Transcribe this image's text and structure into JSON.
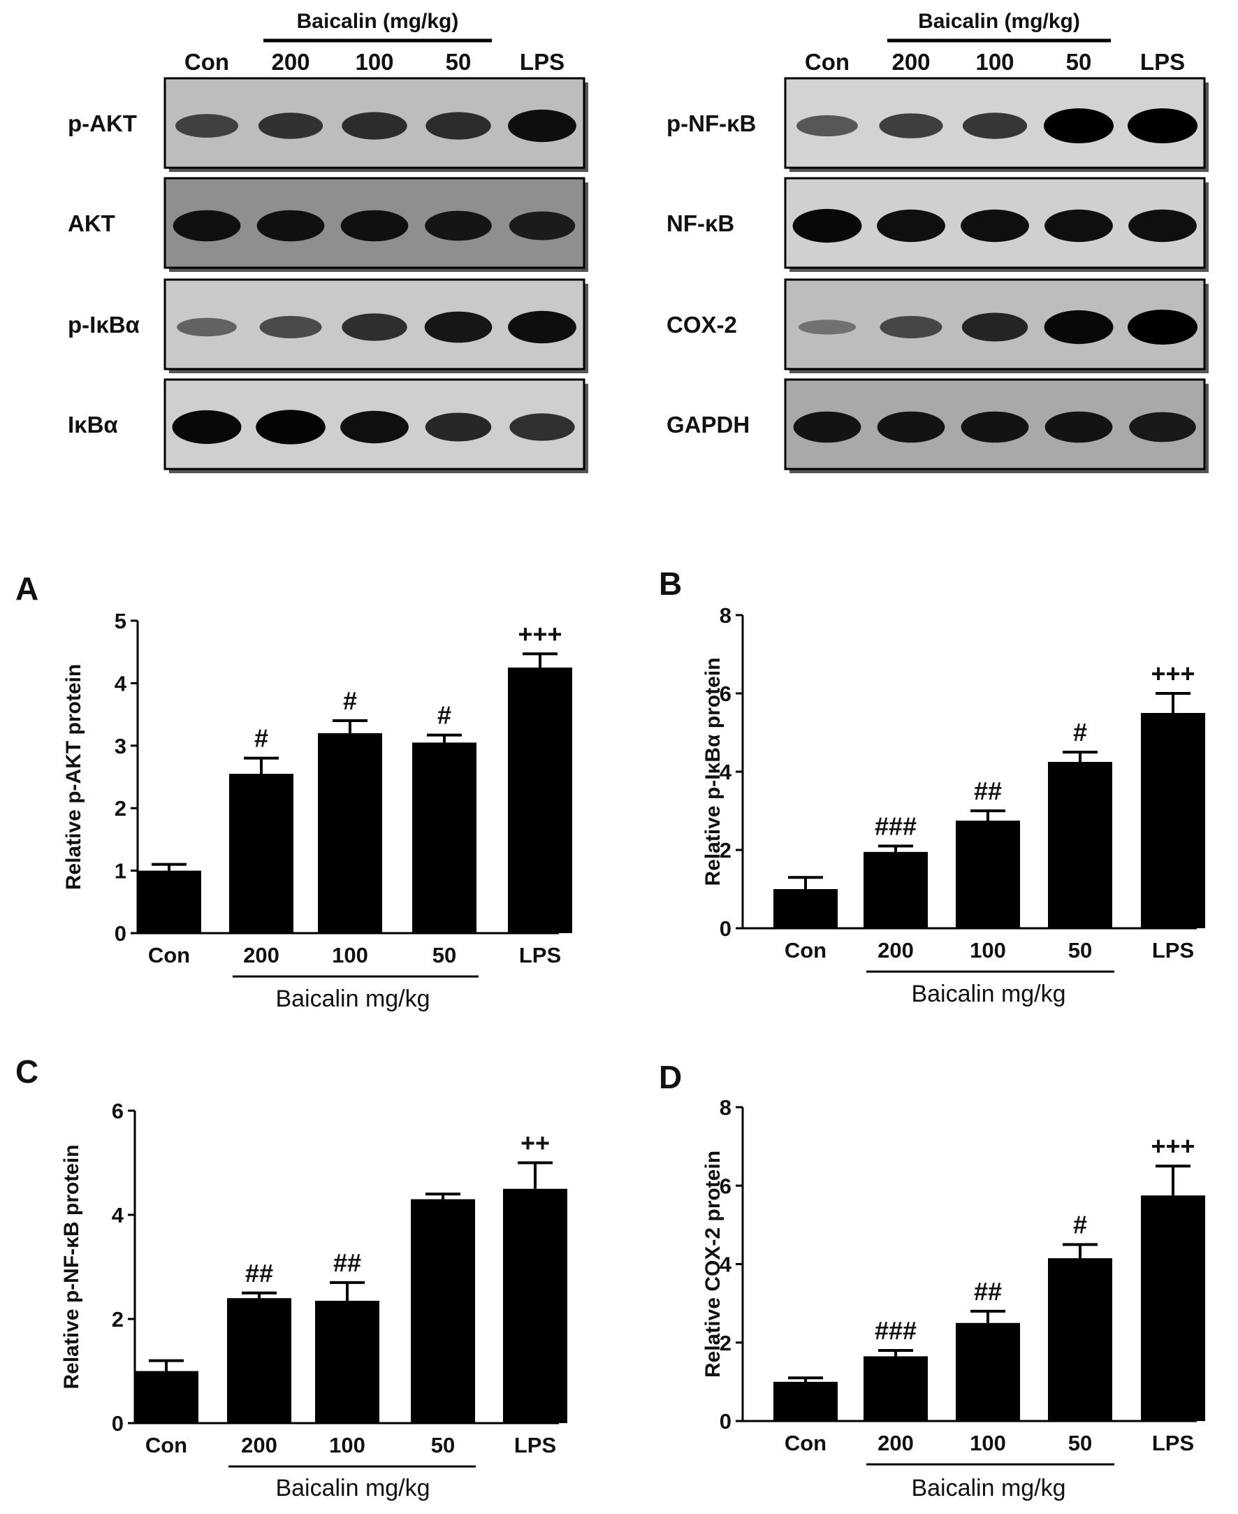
{
  "blots": [
    {
      "group_label": "Baicalin (mg/kg)",
      "lanes": [
        "Con",
        "200",
        "100",
        "50",
        "LPS"
      ],
      "rows": [
        {
          "label": "p-AKT",
          "bg": "#bdbdbd",
          "bands": [
            0.55,
            0.65,
            0.7,
            0.7,
            0.9
          ]
        },
        {
          "label": "AKT",
          "bg": "#8f8f8f",
          "bands": [
            0.85,
            0.85,
            0.85,
            0.8,
            0.75
          ]
        },
        {
          "label": "p-IκBα",
          "bg": "#c9c9c9",
          "bands": [
            0.35,
            0.5,
            0.7,
            0.85,
            0.9
          ]
        },
        {
          "label": "IκBα",
          "bg": "#cfcfcf",
          "bands": [
            0.95,
            0.98,
            0.9,
            0.75,
            0.7
          ]
        }
      ]
    },
    {
      "group_label": "Baicalin (mg/kg)",
      "lanes": [
        "Con",
        "200",
        "100",
        "50",
        "LPS"
      ],
      "rows": [
        {
          "label": "p-NF-κB",
          "bg": "#d3d3d3",
          "bands": [
            0.45,
            0.6,
            0.65,
            1.0,
            1.0
          ]
        },
        {
          "label": "NF-κB",
          "bg": "#d0d0d0",
          "bands": [
            0.95,
            0.9,
            0.9,
            0.9,
            0.9
          ]
        },
        {
          "label": "COX-2",
          "bg": "#bdbdbd",
          "bands": [
            0.2,
            0.5,
            0.75,
            0.95,
            1.0
          ]
        },
        {
          "label": "GAPDH",
          "bg": "#a9a9a9",
          "bands": [
            0.85,
            0.85,
            0.85,
            0.85,
            0.8
          ]
        }
      ]
    }
  ],
  "chart_data": [
    {
      "panel": "A",
      "type": "bar",
      "categories": [
        "Con",
        "200",
        "100",
        "50",
        "LPS"
      ],
      "values": [
        1.0,
        2.55,
        3.2,
        3.05,
        4.25
      ],
      "errors": [
        0.1,
        0.25,
        0.2,
        0.12,
        0.22
      ],
      "annotations": [
        "",
        "#",
        "#",
        "#",
        "+++"
      ],
      "ylabel": "Relative p-AKT protein",
      "xlabel": "Baicalin mg/kg",
      "ylim": [
        0,
        5
      ],
      "yticks": [
        0,
        1,
        2,
        3,
        4,
        5
      ],
      "bar_color": "#000000"
    },
    {
      "panel": "B",
      "type": "bar",
      "categories": [
        "Con",
        "200",
        "100",
        "50",
        "LPS"
      ],
      "values": [
        1.0,
        1.95,
        2.75,
        4.25,
        5.5
      ],
      "errors": [
        0.3,
        0.15,
        0.25,
        0.25,
        0.5
      ],
      "annotations": [
        "",
        "###",
        "##",
        "#",
        "+++"
      ],
      "ylabel": "Relative p-IκBα protein",
      "xlabel": "Baicalin mg/kg",
      "ylim": [
        0,
        8
      ],
      "yticks": [
        0,
        2,
        4,
        6,
        8
      ],
      "bar_color": "#000000"
    },
    {
      "panel": "C",
      "type": "bar",
      "categories": [
        "Con",
        "200",
        "100",
        "50",
        "LPS"
      ],
      "values": [
        1.0,
        2.4,
        2.35,
        4.3,
        4.5
      ],
      "errors": [
        0.2,
        0.1,
        0.35,
        0.1,
        0.5
      ],
      "annotations": [
        "",
        "##",
        "##",
        "",
        "++"
      ],
      "ylabel": "Relative p-NF-κB protein",
      "xlabel": "Baicalin mg/kg",
      "ylim": [
        0,
        6
      ],
      "yticks": [
        0,
        2,
        4,
        6
      ],
      "bar_color": "#000000"
    },
    {
      "panel": "D",
      "type": "bar",
      "categories": [
        "Con",
        "200",
        "100",
        "50",
        "LPS"
      ],
      "values": [
        1.0,
        1.65,
        2.5,
        4.15,
        5.75
      ],
      "errors": [
        0.1,
        0.15,
        0.3,
        0.35,
        0.75
      ],
      "annotations": [
        "",
        "###",
        "##",
        "#",
        "+++"
      ],
      "ylabel": "Relative COX-2 protein",
      "xlabel": "Baicalin mg/kg",
      "ylim": [
        0,
        8
      ],
      "yticks": [
        0,
        2,
        4,
        6,
        8
      ],
      "bar_color": "#000000"
    }
  ]
}
